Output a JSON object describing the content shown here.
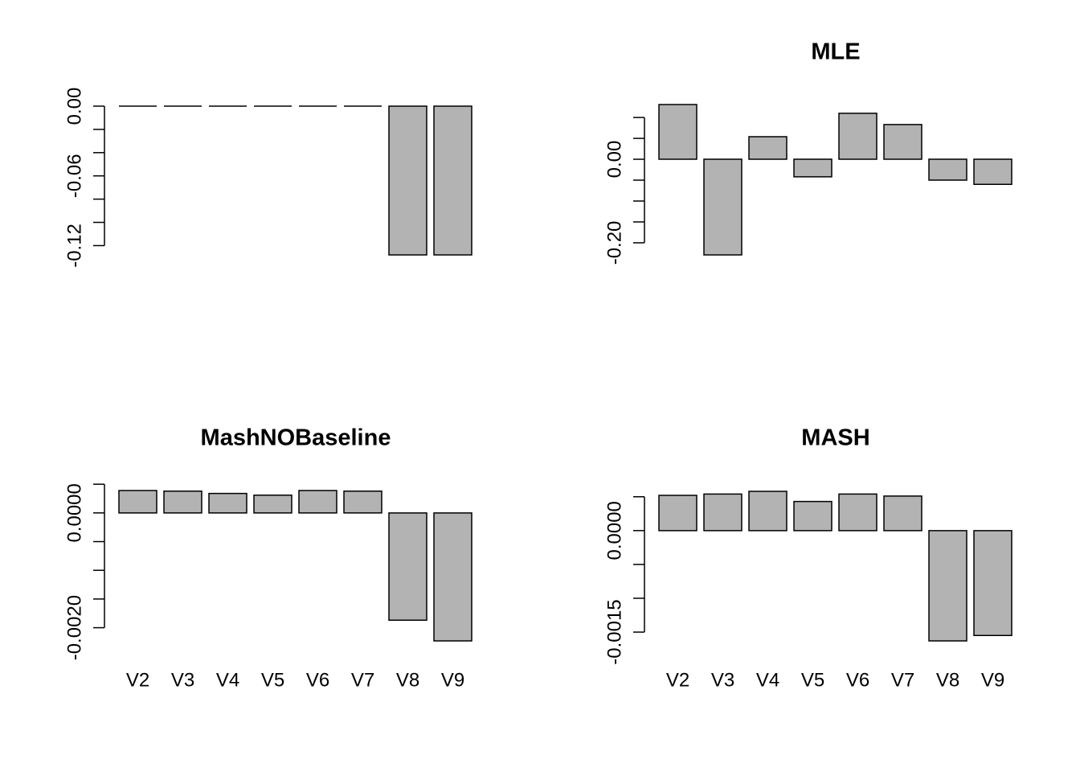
{
  "chart_data": [
    {
      "type": "bar",
      "categories": [
        null,
        null,
        null,
        null,
        null,
        null,
        null,
        null
      ],
      "values": [
        0,
        0,
        0,
        0,
        0,
        0,
        -0.128,
        -0.128
      ],
      "color": "#b3b3b3",
      "ylim": [
        -0.128,
        0
      ],
      "yticks": [
        {
          "value": 0,
          "label": "0.00"
        },
        {
          "value": -0.02,
          "label": null
        },
        {
          "value": -0.04,
          "label": null
        },
        {
          "value": -0.06,
          "label": "-0.06"
        },
        {
          "value": -0.08,
          "label": null
        },
        {
          "value": -0.1,
          "label": null
        },
        {
          "value": -0.12,
          "label": "-0.12"
        }
      ]
    },
    {
      "type": "bar",
      "title": "MLE",
      "categories": [
        null,
        null,
        null,
        null,
        null,
        null,
        null,
        null
      ],
      "values": [
        0.131,
        -0.229,
        0.054,
        -0.042,
        0.11,
        0.083,
        -0.05,
        -0.06
      ],
      "color": "#b3b3b3",
      "ylim": [
        -0.229,
        0.131
      ],
      "yticks": [
        {
          "value": 0.1,
          "label": null
        },
        {
          "value": 0.05,
          "label": null
        },
        {
          "value": 0,
          "label": "0.00"
        },
        {
          "value": -0.05,
          "label": null
        },
        {
          "value": -0.1,
          "label": null
        },
        {
          "value": -0.15,
          "label": null
        },
        {
          "value": -0.2,
          "label": "-0.20"
        }
      ]
    },
    {
      "type": "bar",
      "title": "MashNOBaseline",
      "categories": [
        "V2",
        "V3",
        "V4",
        "V5",
        "V6",
        "V7",
        "V8",
        "V9"
      ],
      "values": [
        0.00039,
        0.00038,
        0.00034,
        0.00031,
        0.00039,
        0.00038,
        -0.00187,
        -0.00223
      ],
      "color": "#b3b3b3",
      "ylim": [
        -0.00223,
        0.00039
      ],
      "yticks": [
        {
          "value": 0.0005,
          "label": null
        },
        {
          "value": 0,
          "label": "0.0000"
        },
        {
          "value": -0.0005,
          "label": null
        },
        {
          "value": -0.001,
          "label": null
        },
        {
          "value": -0.0015,
          "label": null
        },
        {
          "value": -0.002,
          "label": "-0.0020"
        }
      ]
    },
    {
      "type": "bar",
      "title": "MASH",
      "categories": [
        "V2",
        "V3",
        "V4",
        "V5",
        "V6",
        "V7",
        "V8",
        "V9"
      ],
      "values": [
        0.00052,
        0.00054,
        0.00058,
        0.00043,
        0.00054,
        0.00051,
        -0.00163,
        -0.00155
      ],
      "color": "#b3b3b3",
      "ylim": [
        -0.00163,
        0.00058
      ],
      "yticks": [
        {
          "value": 0.0005,
          "label": null
        },
        {
          "value": 0,
          "label": "0.0000"
        },
        {
          "value": -0.0005,
          "label": null
        },
        {
          "value": -0.001,
          "label": null
        },
        {
          "value": -0.0015,
          "label": "-0.0015"
        }
      ]
    }
  ]
}
